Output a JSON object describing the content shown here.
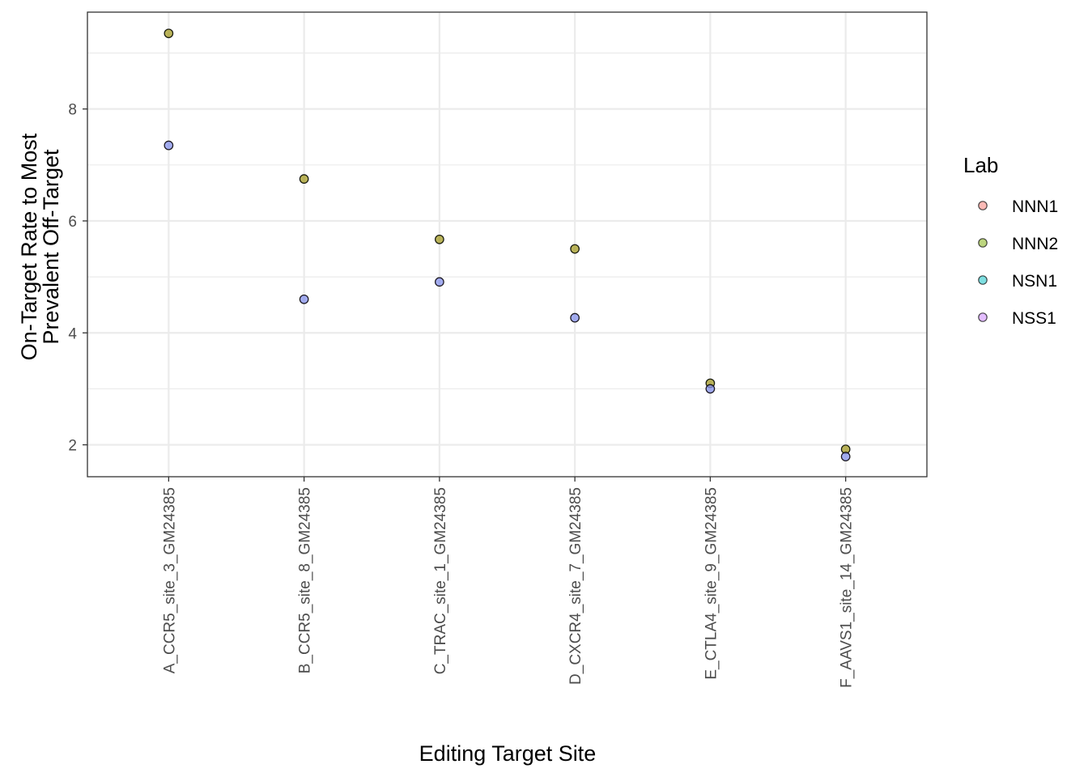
{
  "chart_data": {
    "type": "scatter",
    "xlabel": "Editing Target Site",
    "ylabel_lines": [
      "On-Target Rate to Most",
      "Prevalent Off-Target"
    ],
    "categories": [
      "A_CCR5_site_3_GM24385",
      "B_CCR5_site_8_GM24385",
      "C_TRAC_site_1_GM24385",
      "D_CXCR4_site_7_GM24385",
      "E_CTLA4_site_9_GM24385",
      "F_AAVS1_site_14_GM24385"
    ],
    "yticks": [
      2,
      4,
      6,
      8
    ],
    "ylim": [
      1.43,
      9.73
    ],
    "grid": true,
    "legend": {
      "title": "Lab",
      "placement": "right",
      "entries": [
        {
          "name": "NNN1",
          "color": "#F8766D"
        },
        {
          "name": "NNN2",
          "color": "#7CAE00"
        },
        {
          "name": "NSN1",
          "color": "#00BFC4"
        },
        {
          "name": "NSS1",
          "color": "#C77CFF"
        }
      ]
    },
    "series": [
      {
        "name": "NNN1",
        "color": "#F8766D",
        "values": [
          9.35,
          6.75,
          5.67,
          5.5,
          3.1,
          1.92
        ]
      },
      {
        "name": "NNN2",
        "color": "#7CAE00",
        "values": [
          9.35,
          6.75,
          5.67,
          5.5,
          3.1,
          1.92
        ]
      },
      {
        "name": "NSN1",
        "color": "#00BFC4",
        "values": [
          7.35,
          4.6,
          4.91,
          4.27,
          3.0,
          1.79
        ]
      },
      {
        "name": "NSS1",
        "color": "#C77CFF",
        "values": [
          7.35,
          4.6,
          4.91,
          4.27,
          3.0,
          1.79
        ]
      }
    ]
  }
}
